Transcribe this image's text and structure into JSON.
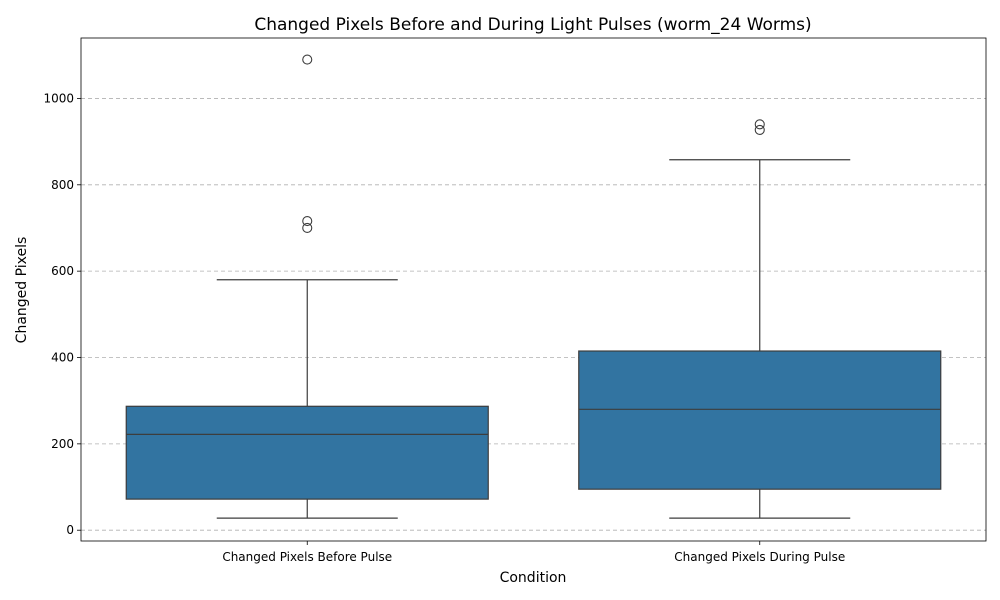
{
  "chart_data": {
    "type": "box",
    "title": "Changed Pixels Before and During Light Pulses (worm_24 Worms)",
    "xlabel": "Condition",
    "ylabel": "Changed Pixels",
    "ylim": [
      -25,
      1140
    ],
    "yticks": [
      0,
      200,
      400,
      600,
      800,
      1000
    ],
    "grid": "y-dashed",
    "box_color": "#3274a1",
    "line_color": "#3d3d3d",
    "categories": [
      "Changed Pixels Before Pulse",
      "Changed Pixels During Pulse"
    ],
    "boxes": [
      {
        "category": "Changed Pixels Before Pulse",
        "whisker_low": 28,
        "q1": 72,
        "median": 222,
        "q3": 287,
        "whisker_high": 580,
        "outliers": [
          700,
          716,
          1090
        ]
      },
      {
        "category": "Changed Pixels During Pulse",
        "whisker_low": 28,
        "q1": 95,
        "median": 280,
        "q3": 415,
        "whisker_high": 858,
        "outliers": [
          927,
          940
        ]
      }
    ]
  }
}
